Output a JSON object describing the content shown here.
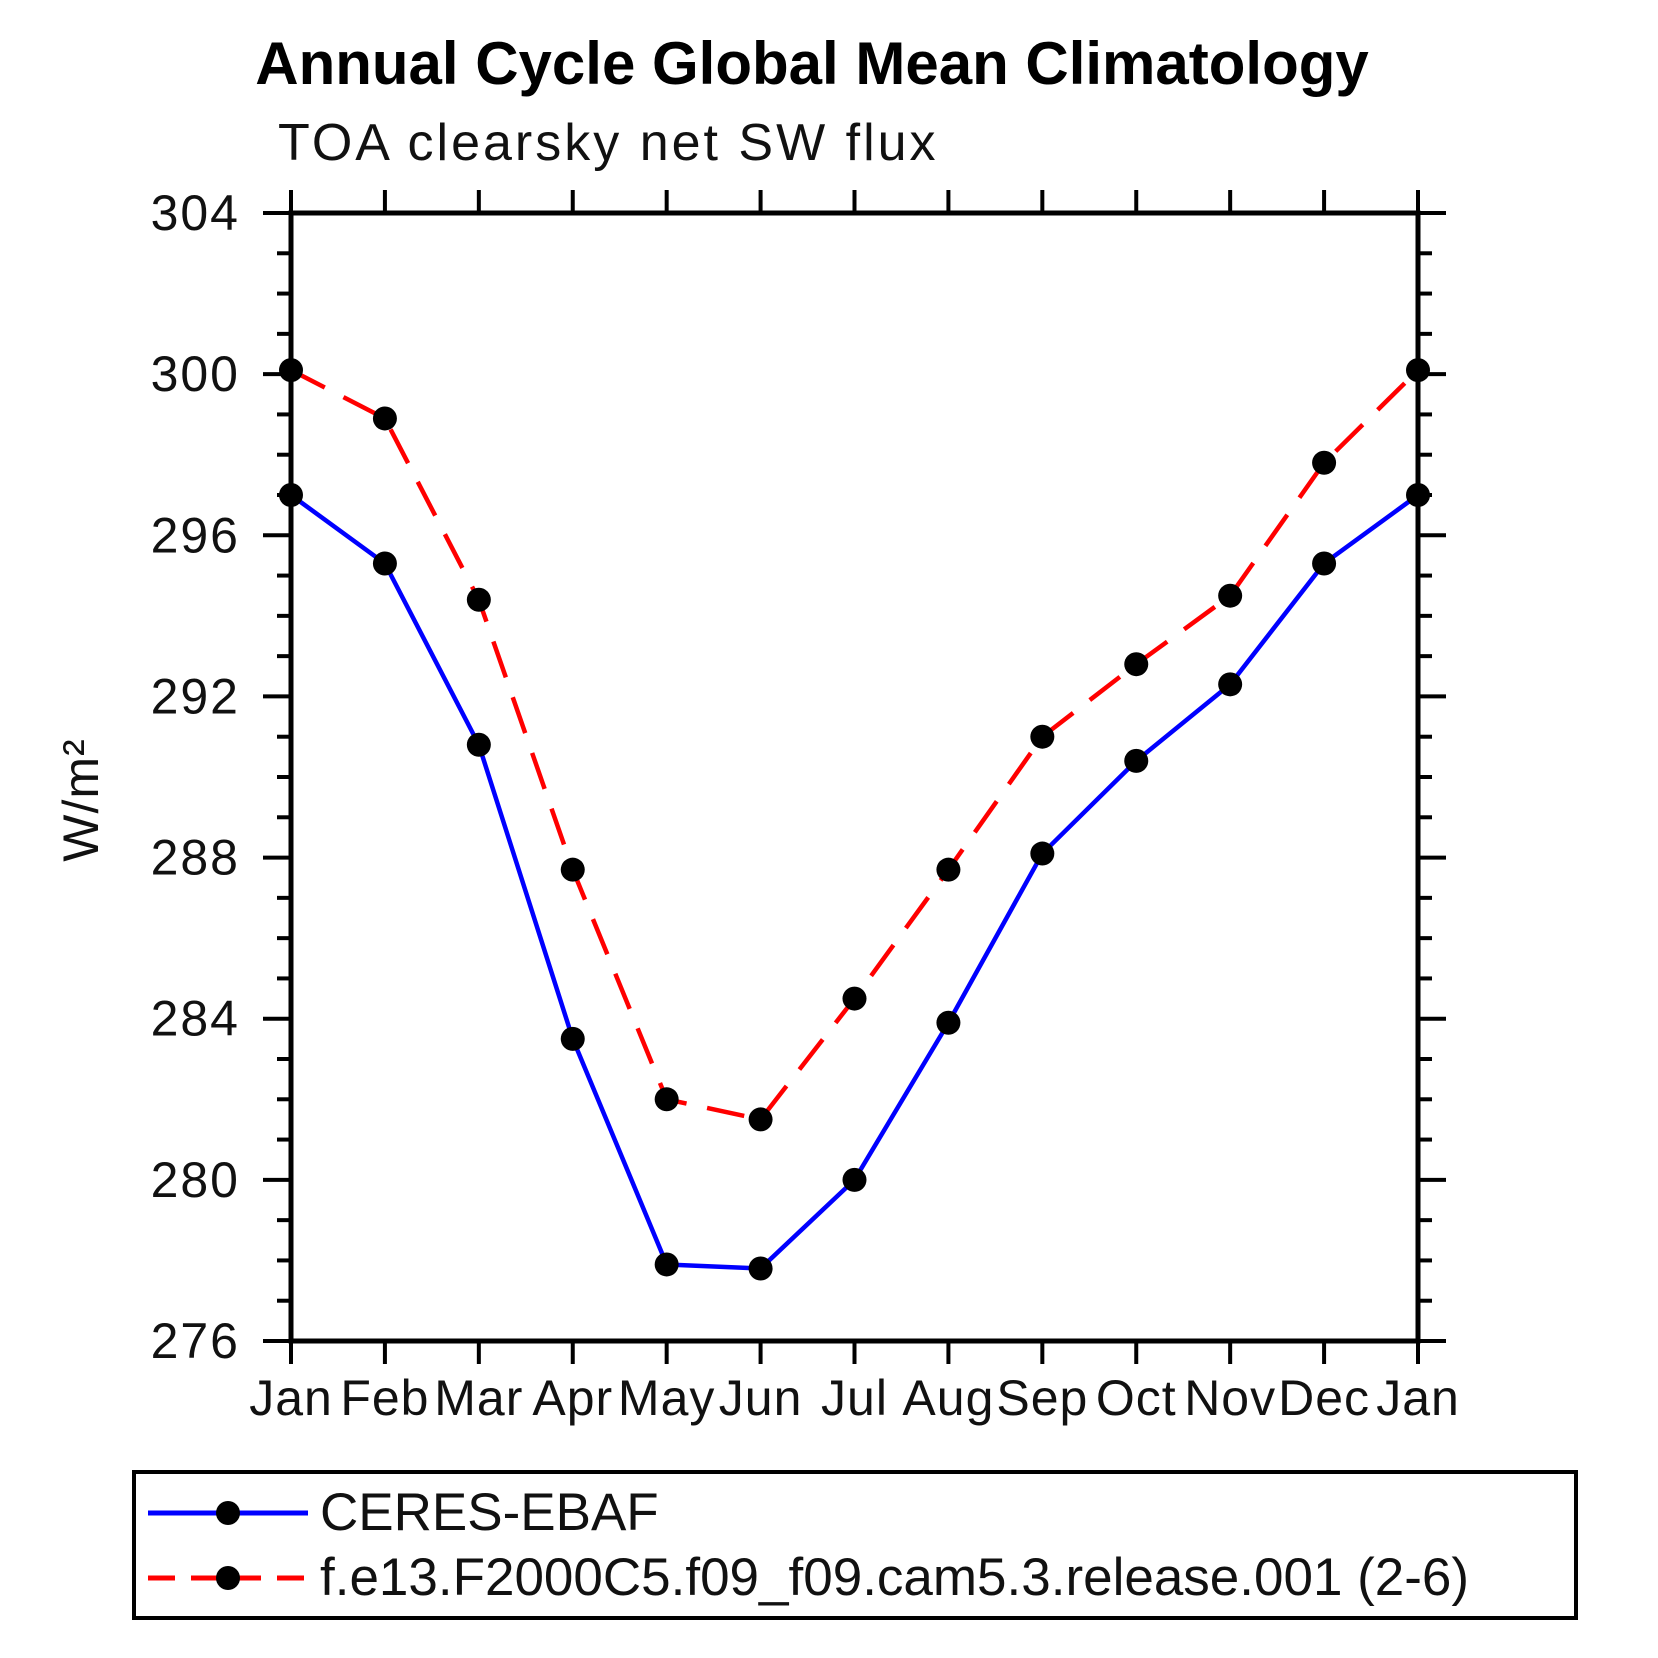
{
  "chart_data": {
    "type": "line",
    "title": "Annual Cycle Global Mean Climatology",
    "subtitle": "TOA clearsky net SW flux",
    "xlabel": "",
    "ylabel": "W/m²",
    "categories": [
      "Jan",
      "Feb",
      "Mar",
      "Apr",
      "May",
      "Jun",
      "Jul",
      "Aug",
      "Sep",
      "Oct",
      "Nov",
      "Dec",
      "Jan"
    ],
    "series": [
      {
        "name": "CERES-EBAF",
        "color": "#0000ff",
        "line_style": "solid",
        "marker": "circle",
        "marker_color": "#000000",
        "values": [
          297.0,
          295.3,
          290.8,
          283.5,
          277.9,
          277.8,
          280.0,
          283.9,
          288.1,
          290.4,
          292.3,
          295.3,
          297.0
        ]
      },
      {
        "name": "f.e13.F2000C5.f09_f09.cam5.3.release.001 (2-6)",
        "color": "#ff0000",
        "line_style": "dashed",
        "marker": "circle",
        "marker_color": "#000000",
        "values": [
          300.1,
          298.9,
          294.4,
          287.7,
          282.0,
          281.5,
          284.5,
          287.7,
          291.0,
          292.8,
          294.5,
          297.8,
          300.1
        ]
      }
    ],
    "ylim": [
      276,
      304
    ],
    "ytick_major": [
      276,
      280,
      284,
      288,
      292,
      296,
      300,
      304
    ],
    "ytick_minor_step": 1,
    "grid": false,
    "legend_position": "bottom",
    "axis_color": "#000000",
    "tick_label_color": "#111111"
  }
}
